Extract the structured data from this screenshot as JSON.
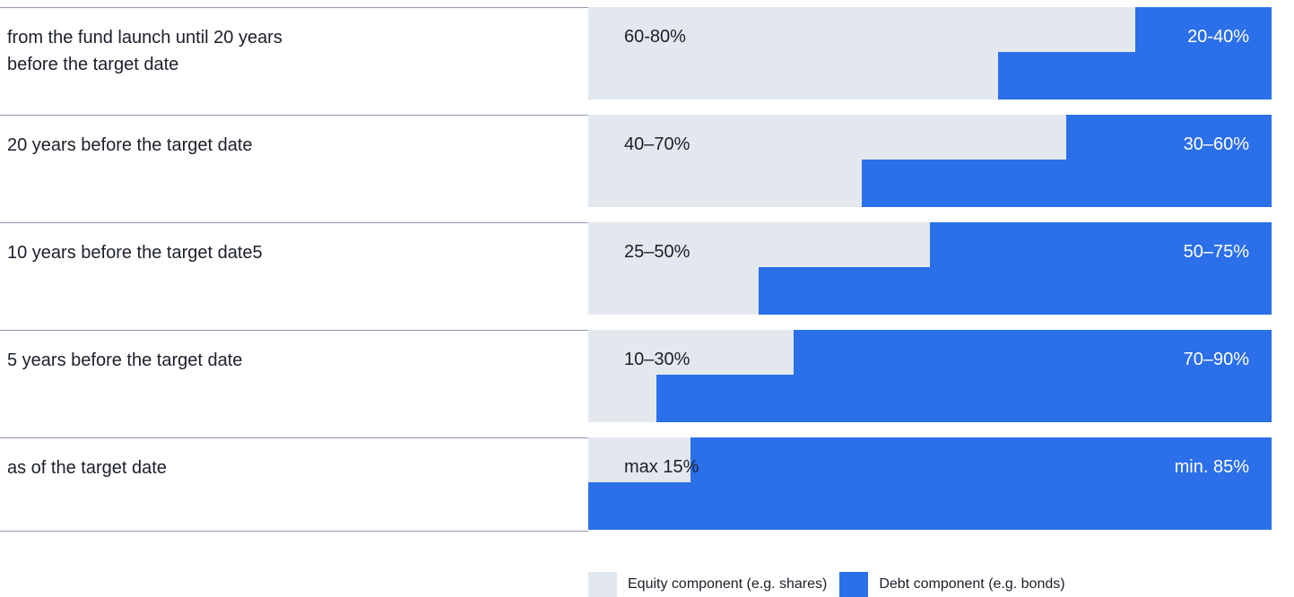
{
  "chart_data": {
    "type": "bar",
    "stacked": true,
    "orientation": "horizontal",
    "categories": [
      "from the fund launch until 20 years\nbefore the target date",
      "20 years before the target date",
      "10 years before the target date5",
      "5 years before the target date",
      "as of the target date"
    ],
    "series": [
      {
        "name": "Equity component (e.g. shares)",
        "color": "#e3e8ef",
        "labels": [
          "60-80%",
          "40–70%",
          "25–50%",
          "10–30%",
          "max 15%"
        ],
        "ranges": [
          [
            60,
            80
          ],
          [
            40,
            70
          ],
          [
            25,
            50
          ],
          [
            10,
            30
          ],
          [
            0,
            15
          ]
        ]
      },
      {
        "name": "Debt component (e.g. bonds)",
        "color": "#2b6fe9",
        "labels": [
          "20-40%",
          "30–60%",
          "50–75%",
          "70–90%",
          "min. 85%"
        ],
        "ranges": [
          [
            20,
            40
          ],
          [
            30,
            60
          ],
          [
            50,
            75
          ],
          [
            70,
            90
          ],
          [
            85,
            100
          ]
        ]
      }
    ],
    "xlim": [
      0,
      100
    ],
    "title": "",
    "xlabel": "",
    "ylabel": "",
    "legend": "bottom-right",
    "grid": false
  }
}
